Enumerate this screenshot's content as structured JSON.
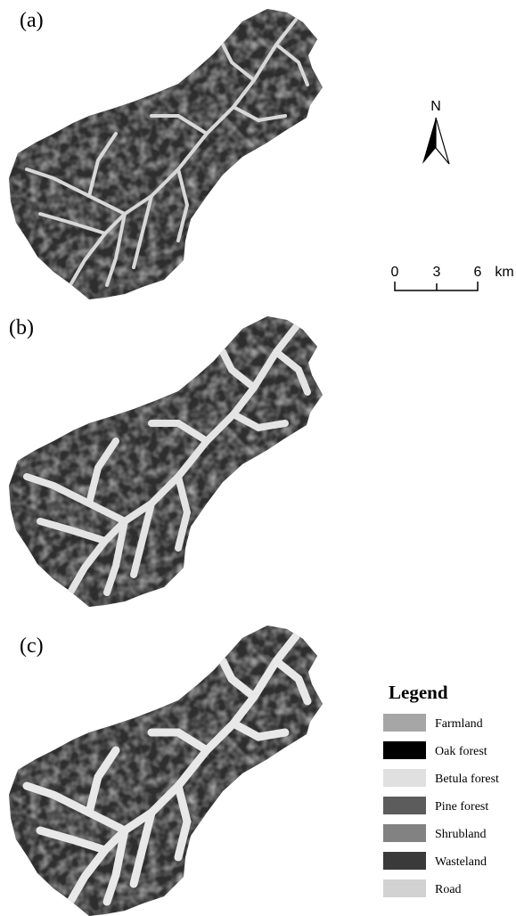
{
  "panels": [
    {
      "label": "(a)"
    },
    {
      "label": "(b)"
    },
    {
      "label": "(c)"
    }
  ],
  "north_arrow": {
    "label": "N"
  },
  "scale_bar": {
    "ticks": [
      "0",
      "3",
      "6"
    ],
    "unit": "km"
  },
  "legend": {
    "title": "Legend",
    "items": [
      {
        "label": "Farmland",
        "color": "#a6a6a6"
      },
      {
        "label": "Oak forest",
        "color": "#000000"
      },
      {
        "label": "Betula forest",
        "color": "#e0e0e0"
      },
      {
        "label": "Pine forest",
        "color": "#5c5c5c"
      },
      {
        "label": "Shrubland",
        "color": "#828282"
      },
      {
        "label": "Wasteland",
        "color": "#3a3a3a"
      },
      {
        "label": "Road",
        "color": "#d2d2d2"
      }
    ]
  }
}
